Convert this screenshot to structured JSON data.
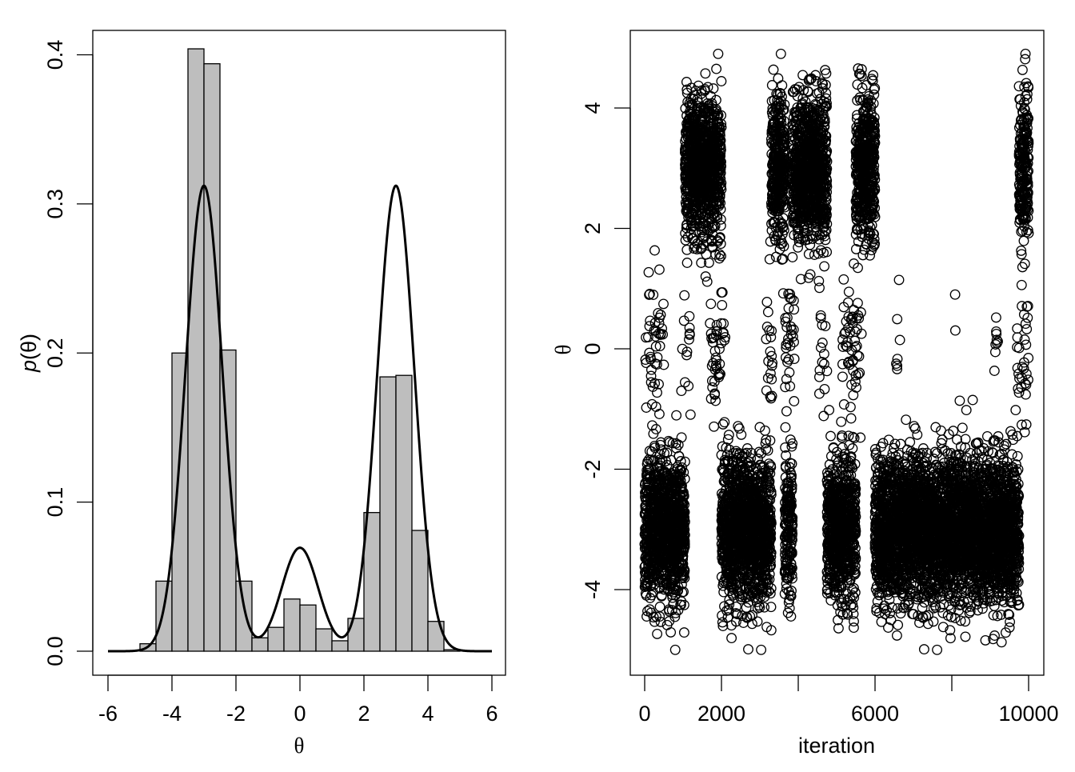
{
  "chart_data": [
    {
      "type": "bar",
      "subtype": "histogram with density curve",
      "title": "",
      "xlabel": "θ",
      "ylabel_prefix": "p",
      "ylabel_arg": "(θ)",
      "xlim": [
        -6,
        6
      ],
      "ylim": [
        0,
        0.4
      ],
      "x_ticks": [
        -6,
        -4,
        -2,
        0,
        2,
        4,
        6
      ],
      "x_tick_labels": [
        "-6",
        "-4",
        "-2",
        "0",
        "2",
        "4",
        "6"
      ],
      "y_ticks": [
        0,
        0.1,
        0.2,
        0.3,
        0.4
      ],
      "y_tick_labels": [
        "0.0",
        "0.1",
        "0.2",
        "0.3",
        "0.4"
      ],
      "bar_color": "#bebebe",
      "bin_width": 0.5,
      "bins": [
        {
          "x0": -5.0,
          "x1": -4.5,
          "density": 0.005
        },
        {
          "x0": -4.5,
          "x1": -4.0,
          "density": 0.047
        },
        {
          "x0": -4.0,
          "x1": -3.5,
          "density": 0.2
        },
        {
          "x0": -3.5,
          "x1": -3.0,
          "density": 0.404
        },
        {
          "x0": -3.0,
          "x1": -2.5,
          "density": 0.394
        },
        {
          "x0": -2.5,
          "x1": -2.0,
          "density": 0.202
        },
        {
          "x0": -2.0,
          "x1": -1.5,
          "density": 0.047
        },
        {
          "x0": -1.5,
          "x1": -1.0,
          "density": 0.009
        },
        {
          "x0": -1.0,
          "x1": -0.5,
          "density": 0.016
        },
        {
          "x0": -0.5,
          "x1": 0.0,
          "density": 0.035
        },
        {
          "x0": 0.0,
          "x1": 0.5,
          "density": 0.031
        },
        {
          "x0": 0.5,
          "x1": 1.0,
          "density": 0.015
        },
        {
          "x0": 1.0,
          "x1": 1.5,
          "density": 0.007
        },
        {
          "x0": 1.5,
          "x1": 2.0,
          "density": 0.022
        },
        {
          "x0": 2.0,
          "x1": 2.5,
          "density": 0.093
        },
        {
          "x0": 2.5,
          "x1": 3.0,
          "density": 0.184
        },
        {
          "x0": 3.0,
          "x1": 3.5,
          "density": 0.185
        },
        {
          "x0": 3.5,
          "x1": 4.0,
          "density": 0.081
        },
        {
          "x0": 4.0,
          "x1": 4.5,
          "density": 0.02
        },
        {
          "x0": 4.5,
          "x1": 5.0,
          "density": 0.001
        }
      ],
      "density_curve": {
        "components": [
          {
            "weight": 0.45,
            "mean": -3,
            "sd": 0.575
          },
          {
            "weight": 0.1,
            "mean": 0,
            "sd": 0.575
          },
          {
            "weight": 0.45,
            "mean": 3,
            "sd": 0.575
          }
        ],
        "x_range": [
          -6,
          6
        ]
      }
    },
    {
      "type": "scatter",
      "subtype": "trace plot",
      "title": "",
      "xlabel": "iteration",
      "ylabel": "θ",
      "xlim": [
        0,
        10000
      ],
      "ylim": [
        -5,
        5
      ],
      "x_ticks": [
        0,
        2000,
        4000,
        6000,
        8000,
        10000
      ],
      "x_tick_labels": [
        "0",
        "2000",
        "",
        "6000",
        "",
        "10000"
      ],
      "y_ticks": [
        -4,
        -2,
        0,
        2,
        4
      ],
      "y_tick_labels": [
        "-4",
        "-2",
        "0",
        "2",
        "4"
      ],
      "marker": "open-circle",
      "n_points": 10000,
      "segments": [
        {
          "from": 0,
          "to": 500,
          "mode": -3
        },
        {
          "from": 500,
          "to": 1050,
          "mode": -3
        },
        {
          "from": 1050,
          "to": 2000,
          "mode": 3
        },
        {
          "from": 2000,
          "to": 3300,
          "mode": -3
        },
        {
          "from": 3300,
          "to": 3650,
          "mode": 3
        },
        {
          "from": 3650,
          "to": 3850,
          "mode": -3
        },
        {
          "from": 3850,
          "to": 4750,
          "mode": 3
        },
        {
          "from": 4750,
          "to": 5500,
          "mode": -3
        },
        {
          "from": 5500,
          "to": 6000,
          "mode": 3
        },
        {
          "from": 6000,
          "to": 9750,
          "mode": -3
        },
        {
          "from": 9750,
          "to": 10000,
          "mode": 3
        }
      ],
      "middle_mode_bands": [
        {
          "from": 0,
          "to": 500
        },
        {
          "from": 950,
          "to": 1200
        },
        {
          "from": 1700,
          "to": 2100
        },
        {
          "from": 3150,
          "to": 3350
        },
        {
          "from": 3600,
          "to": 3900
        },
        {
          "from": 4550,
          "to": 4750
        },
        {
          "from": 5150,
          "to": 5650
        },
        {
          "from": 6550,
          "to": 6650
        },
        {
          "from": 8050,
          "to": 8100
        },
        {
          "from": 9100,
          "to": 9200
        },
        {
          "from": 9700,
          "to": 10000
        }
      ]
    }
  ]
}
